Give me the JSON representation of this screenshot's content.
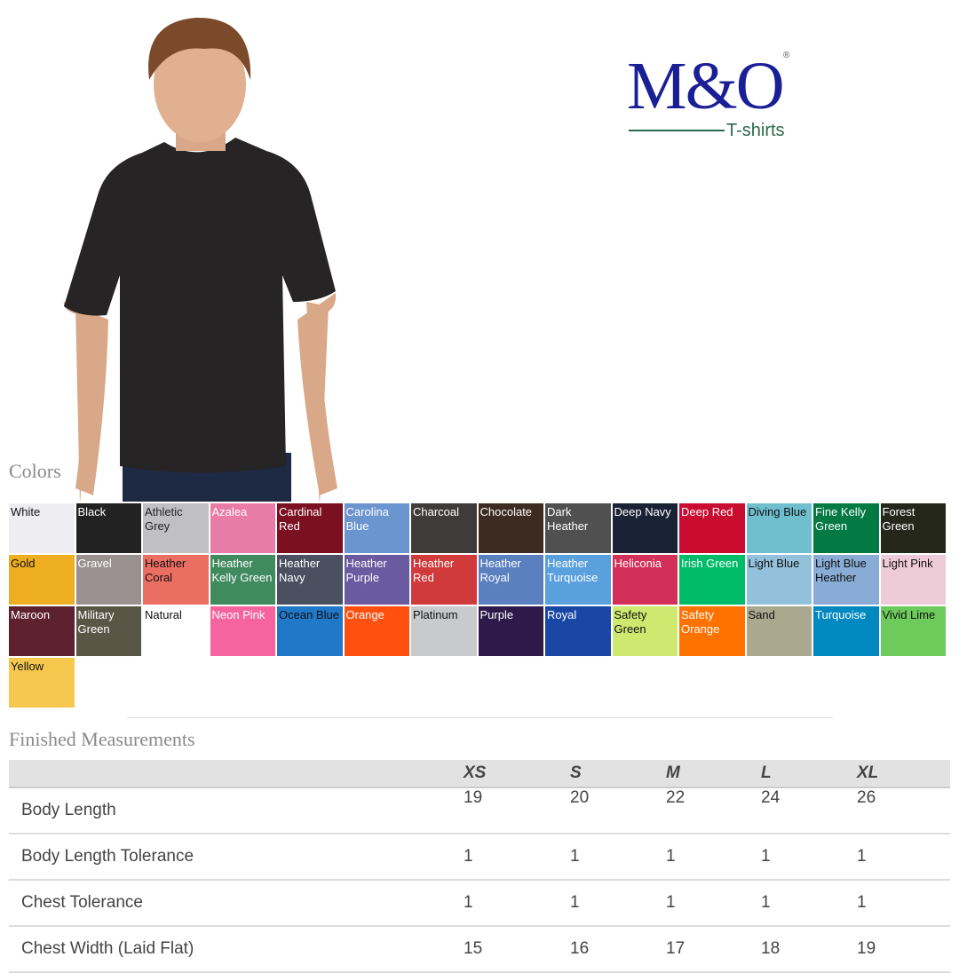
{
  "brand": {
    "logo_main": "M&O",
    "logo_sub": "T-shirts",
    "registered": "®"
  },
  "colors_title": "Colors",
  "swatches": [
    {
      "name": "White",
      "color": "#eeeef2",
      "text": "#111"
    },
    {
      "name": "Black",
      "color": "#222222",
      "text": "#fff"
    },
    {
      "name": "Athletic Grey",
      "color": "#c0c0c2",
      "text": "#222"
    },
    {
      "name": "Azalea",
      "color": "#e87ca6",
      "text": "#fff"
    },
    {
      "name": "Cardinal Red",
      "color": "#7b1020",
      "text": "#fff"
    },
    {
      "name": "Carolina Blue",
      "color": "#6a95cf",
      "text": "#fff"
    },
    {
      "name": "Charcoal",
      "color": "#3f3b3b",
      "text": "#fff"
    },
    {
      "name": "Chocolate",
      "color": "#3d2a20",
      "text": "#fff"
    },
    {
      "name": "Dark Heather",
      "color": "#505050",
      "text": "#fff"
    },
    {
      "name": "Deep Navy",
      "color": "#1a2236",
      "text": "#fff"
    },
    {
      "name": "Deep Red",
      "color": "#c90c30",
      "text": "#fff"
    },
    {
      "name": "Diving Blue",
      "color": "#6fbfcf",
      "text": "#111"
    },
    {
      "name": "Fine Kelly Green",
      "color": "#037a44",
      "text": "#fff"
    },
    {
      "name": "Forest Green",
      "color": "#24271a",
      "text": "#fff"
    },
    {
      "name": "Gold",
      "color": "#eeae22",
      "text": "#111"
    },
    {
      "name": "Gravel",
      "color": "#9a9090",
      "text": "#fff"
    },
    {
      "name": "Heather Coral",
      "color": "#eb6e63",
      "text": "#111"
    },
    {
      "name": "Heather Kelly Green",
      "color": "#3f8a5e",
      "text": "#fff"
    },
    {
      "name": "Heather Navy",
      "color": "#4a5060",
      "text": "#fff"
    },
    {
      "name": "Heather Purple",
      "color": "#6a5aa0",
      "text": "#fff"
    },
    {
      "name": "Heather Red",
      "color": "#d03a3a",
      "text": "#fff"
    },
    {
      "name": "Heather Royal",
      "color": "#5a80c0",
      "text": "#fff"
    },
    {
      "name": "Heather Turquoise",
      "color": "#5aa0dc",
      "text": "#fff"
    },
    {
      "name": "Heliconia",
      "color": "#d23058",
      "text": "#fff"
    },
    {
      "name": "Irish Green",
      "color": "#00bc68",
      "text": "#fff"
    },
    {
      "name": "Light Blue",
      "color": "#93c1dc",
      "text": "#111"
    },
    {
      "name": "Light Blue Heather",
      "color": "#89acd6",
      "text": "#111"
    },
    {
      "name": "Light Pink",
      "color": "#efcbd8",
      "text": "#111"
    },
    {
      "name": "Maroon",
      "color": "#5e2130",
      "text": "#fff"
    },
    {
      "name": "Military Green",
      "color": "#5a5646",
      "text": "#fff"
    },
    {
      "name": "Natural",
      "color": "#ffffff",
      "text": "#111"
    },
    {
      "name": "Neon Pink",
      "color": "#f5649f",
      "text": "#fff"
    },
    {
      "name": "Ocean Blue",
      "color": "#2078c8",
      "text": "#111"
    },
    {
      "name": "Orange",
      "color": "#ff5010",
      "text": "#fff"
    },
    {
      "name": "Platinum",
      "color": "#c8cacc",
      "text": "#111"
    },
    {
      "name": "Purple",
      "color": "#2e1a4a",
      "text": "#fff"
    },
    {
      "name": "Royal",
      "color": "#1a46a6",
      "text": "#fff"
    },
    {
      "name": "Safety Green",
      "color": "#cfe870",
      "text": "#111"
    },
    {
      "name": "Safety Orange",
      "color": "#ff7200",
      "text": "#fff"
    },
    {
      "name": "Sand",
      "color": "#aba890",
      "text": "#111"
    },
    {
      "name": "Turquoise",
      "color": "#0088c0",
      "text": "#fff"
    },
    {
      "name": "Vivid Lime",
      "color": "#6ccb5a",
      "text": "#111"
    },
    {
      "name": "Yellow",
      "color": "#f6c84e",
      "text": "#111"
    }
  ],
  "measurements": {
    "title": "Finished Measurements",
    "sizes": [
      "XS",
      "S",
      "M",
      "L",
      "XL"
    ],
    "rows": [
      {
        "label": "Body Length",
        "values": [
          "19",
          "20",
          "22",
          "24",
          "26"
        ]
      },
      {
        "label": "Body Length Tolerance",
        "values": [
          "1",
          "1",
          "1",
          "1",
          "1"
        ]
      },
      {
        "label": "Chest Tolerance",
        "values": [
          "1",
          "1",
          "1",
          "1",
          "1"
        ]
      },
      {
        "label": "Chest Width (Laid Flat)",
        "values": [
          "15",
          "16",
          "17",
          "18",
          "19"
        ]
      }
    ]
  }
}
